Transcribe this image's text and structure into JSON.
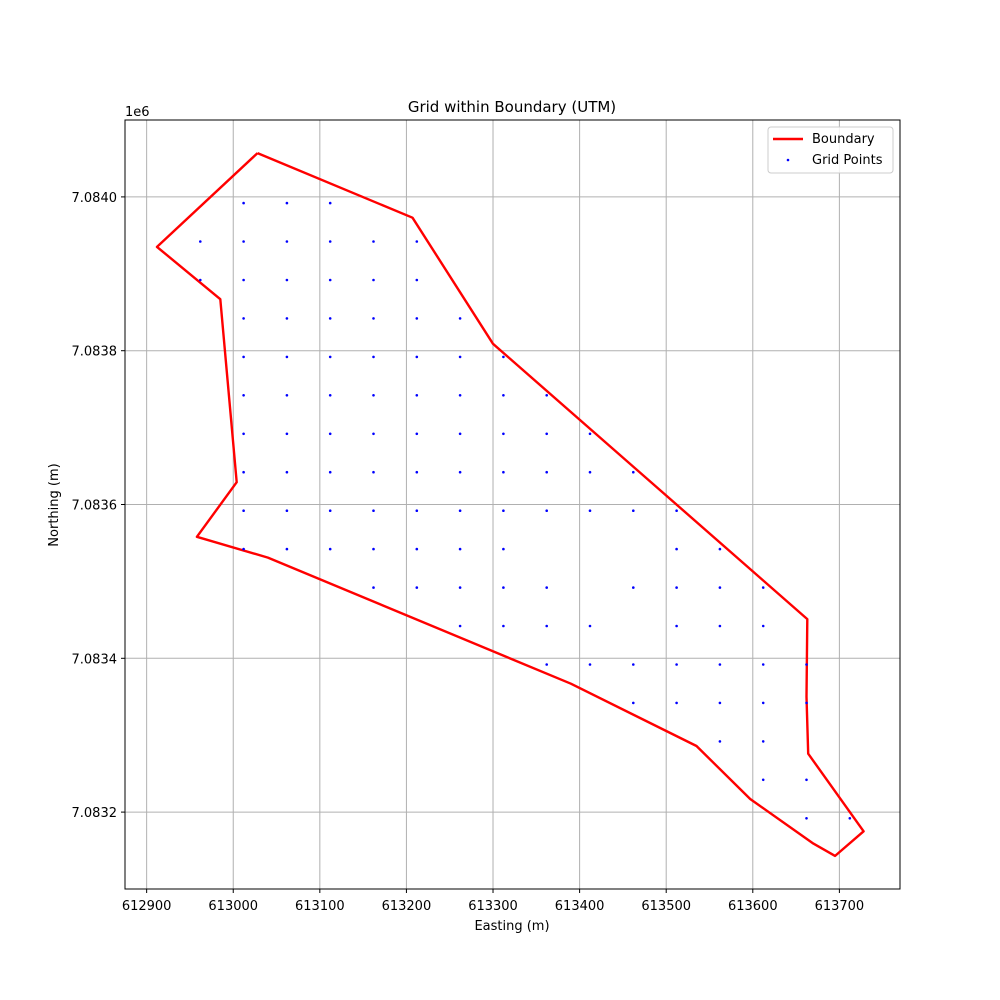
{
  "chart_data": {
    "type": "scatter",
    "title": "Grid within Boundary (UTM)",
    "xlabel": "Easting (m)",
    "ylabel": "Northing (m)",
    "y_offset_label": "1e6",
    "xlim": [
      612875,
      613770
    ],
    "ylim": [
      7083100,
      7084100
    ],
    "x_ticks": [
      612900,
      613000,
      613100,
      613200,
      613300,
      613400,
      613500,
      613600,
      613700
    ],
    "x_tick_labels": [
      "612900",
      "613000",
      "613100",
      "613200",
      "613300",
      "613400",
      "613500",
      "613600",
      "613700"
    ],
    "y_ticks": [
      7083200,
      7083400,
      7083600,
      7083800,
      7084000
    ],
    "y_tick_labels": [
      "7.0832",
      "7.0834",
      "7.0836",
      "7.0838",
      "7.0840"
    ],
    "grid": true,
    "legend_position": "top-right",
    "colors": {
      "boundary": "#ff0000",
      "points": "#0000ff",
      "grid": "#b0b0b0",
      "axes": "#000000"
    },
    "series": [
      {
        "name": "Boundary",
        "kind": "line",
        "x": [
          613028,
          613207,
          613300,
          613663,
          613662,
          613664,
          613728,
          613695,
          613670,
          613597,
          613535,
          613390,
          613040,
          612958,
          613004,
          612985,
          612912,
          613028
        ],
        "y": [
          7084057,
          7083973,
          7083809,
          7083451,
          7083350,
          7083276,
          7083175,
          7083143,
          7083159,
          7083217,
          7083286,
          7083367,
          7083531,
          7083558,
          7083629,
          7083867,
          7083935,
          7084057
        ]
      },
      {
        "name": "Grid Points",
        "kind": "scatter",
        "x": [
          613012,
          613062,
          613112,
          612962,
          613012,
          613062,
          613112,
          613162,
          613212,
          612962,
          613012,
          613062,
          613112,
          613162,
          613212,
          613012,
          613062,
          613112,
          613162,
          613212,
          613262,
          613012,
          613062,
          613112,
          613162,
          613212,
          613262,
          613312,
          613012,
          613062,
          613112,
          613162,
          613212,
          613262,
          613312,
          613362,
          613012,
          613062,
          613112,
          613162,
          613212,
          613262,
          613312,
          613362,
          613412,
          613012,
          613062,
          613112,
          613162,
          613212,
          613262,
          613312,
          613362,
          613412,
          613462,
          613012,
          613062,
          613112,
          613162,
          613212,
          613262,
          613312,
          613362,
          613412,
          613462,
          613512,
          613012,
          613062,
          613112,
          613162,
          613212,
          613262,
          613312,
          613512,
          613562,
          613162,
          613212,
          613262,
          613312,
          613362,
          613462,
          613512,
          613562,
          613612,
          613262,
          613312,
          613362,
          613412,
          613512,
          613562,
          613612,
          613362,
          613412,
          613462,
          613512,
          613562,
          613612,
          613662,
          613462,
          613512,
          613562,
          613612,
          613662,
          613562,
          613612,
          613612,
          613662,
          613662,
          613712
        ],
        "y": [
          7083992,
          7083992,
          7083992,
          7083942,
          7083942,
          7083942,
          7083942,
          7083942,
          7083942,
          7083892,
          7083892,
          7083892,
          7083892,
          7083892,
          7083892,
          7083842,
          7083842,
          7083842,
          7083842,
          7083842,
          7083842,
          7083792,
          7083792,
          7083792,
          7083792,
          7083792,
          7083792,
          7083792,
          7083742,
          7083742,
          7083742,
          7083742,
          7083742,
          7083742,
          7083742,
          7083742,
          7083692,
          7083692,
          7083692,
          7083692,
          7083692,
          7083692,
          7083692,
          7083692,
          7083692,
          7083642,
          7083642,
          7083642,
          7083642,
          7083642,
          7083642,
          7083642,
          7083642,
          7083642,
          7083642,
          7083592,
          7083592,
          7083592,
          7083592,
          7083592,
          7083592,
          7083592,
          7083592,
          7083592,
          7083592,
          7083592,
          7083542,
          7083542,
          7083542,
          7083542,
          7083542,
          7083542,
          7083542,
          7083542,
          7083542,
          7083492,
          7083492,
          7083492,
          7083492,
          7083492,
          7083492,
          7083492,
          7083492,
          7083492,
          7083442,
          7083442,
          7083442,
          7083442,
          7083442,
          7083442,
          7083442,
          7083392,
          7083392,
          7083392,
          7083392,
          7083392,
          7083392,
          7083392,
          7083342,
          7083342,
          7083342,
          7083342,
          7083342,
          7083292,
          7083292,
          7083242,
          7083242,
          7083192,
          7083192
        ]
      }
    ]
  }
}
